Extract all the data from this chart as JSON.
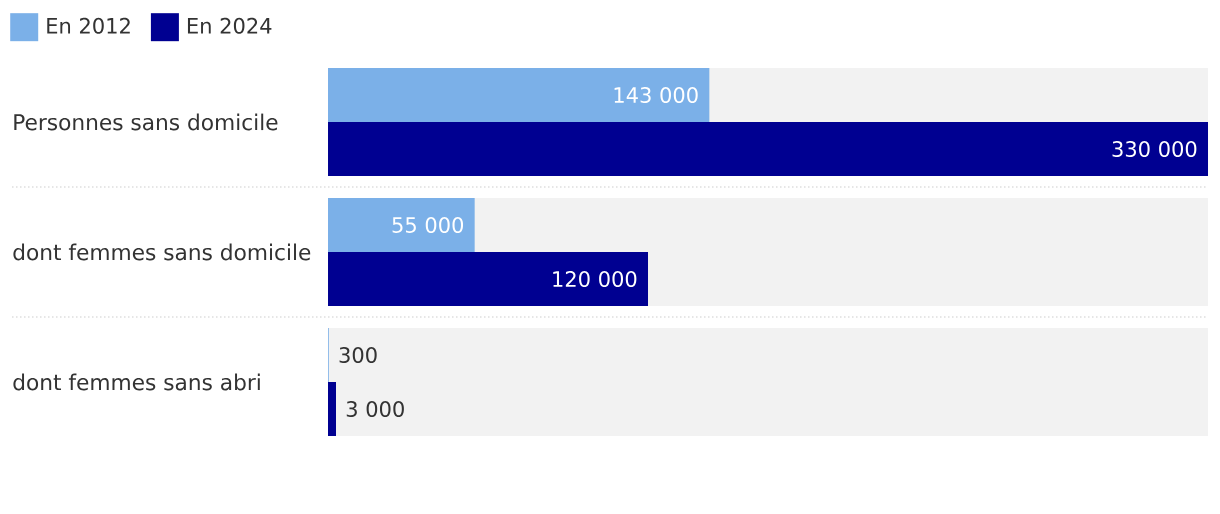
{
  "chart_data": {
    "type": "bar",
    "orientation": "horizontal",
    "categories": [
      "Personnes sans domicile",
      "dont femmes sans domicile",
      "dont femmes sans abri"
    ],
    "series": [
      {
        "name": "En 2012",
        "color": "#7bb0e8",
        "values": [
          143000,
          55000,
          300
        ],
        "value_labels": [
          "143 000",
          "55 000",
          "300"
        ]
      },
      {
        "name": "En 2024",
        "color": "#000091",
        "values": [
          330000,
          120000,
          3000
        ],
        "value_labels": [
          "330 000",
          "120 000",
          "3 000"
        ]
      }
    ],
    "bands": [
      {
        "axis": "y",
        "from": "Personnes sans domicile",
        "to": "Personnes sans domicile",
        "color": "#f2f2f2"
      },
      {
        "axis": "y",
        "from": "dont femmes sans domicile",
        "to": "dont femmes sans domicile",
        "color": "#f2f2f2"
      },
      {
        "axis": "y",
        "from": "dont femmes sans abri",
        "to": "dont femmes sans abri",
        "color": "#f2f2f2"
      }
    ],
    "xlim": [
      0,
      330000
    ],
    "tick_labels": "y",
    "legend": "top left"
  }
}
